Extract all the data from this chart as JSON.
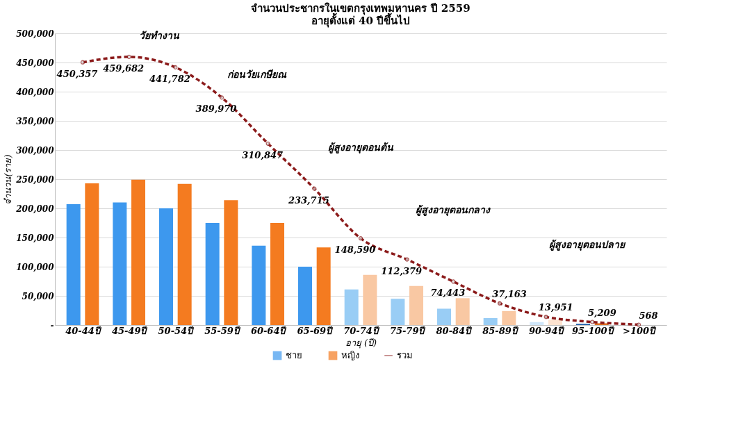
{
  "chart_data": {
    "type": "bar",
    "title": "จำนวนประชากรในเขตกรุงเทพมหานคร ปี 2559",
    "subtitle": "อายุตั้งแต่ 40 ปีขึ้นไป",
    "xlabel": "อายุ (ปี)",
    "ylabel": "จำนวน(ราย)",
    "categories": [
      "40-44ปี",
      "45-49ปี",
      "50-54ปี",
      "55-59ปี",
      "60-64ปี",
      "65-69ปี",
      "70-74ปี",
      "75-79ปี",
      "80-84ปี",
      "85-89ปี",
      "90-94ปี",
      "95-100ปี",
      ">100ปี"
    ],
    "series": [
      {
        "name": "ชาย",
        "color": "#3d98ee",
        "colors": [
          "#3d98ee",
          "#3d98ee",
          "#3d98ee",
          "#3d98ee",
          "#3d98ee",
          "#3d98ee",
          "#99cdf5",
          "#99cdf5",
          "#99cdf5",
          "#99cdf5",
          "#cfe6fa",
          "#1f5fa8",
          "#1f5fa8"
        ],
        "values": [
          207000,
          210000,
          200000,
          175000,
          136000,
          100000,
          61000,
          45000,
          28000,
          12000,
          5000,
          2000,
          0
        ]
      },
      {
        "name": "หญิง",
        "color": "#f47b20",
        "colors": [
          "#f47b20",
          "#f47b20",
          "#f47b20",
          "#f47b20",
          "#f47b20",
          "#f47b20",
          "#f9c8a3",
          "#f9c8a3",
          "#f9c8a3",
          "#f9c8a3",
          "#fde3d0",
          "#e07020",
          "#e07020"
        ],
        "values": [
          243000,
          249000,
          242000,
          214000,
          175000,
          133000,
          86000,
          67000,
          46000,
          24000,
          9000,
          3000,
          0
        ]
      },
      {
        "name": "รวม",
        "type": "line",
        "color": "#8b1a1a",
        "values": [
          450357,
          459682,
          441782,
          389970,
          310847,
          233715,
          148590,
          112379,
          74443,
          37163,
          13951,
          5209,
          568
        ],
        "value_labels": [
          "450,357",
          "459,682",
          "441,782",
          "389,970",
          "310,847",
          "233,715",
          "148,590",
          "112,379",
          "74,443",
          "37,163",
          "13,951",
          "5,209",
          "568"
        ]
      }
    ],
    "ylim": [
      0,
      500000
    ],
    "yticks": [
      {
        "value": 0,
        "label": "-"
      },
      {
        "value": 50000,
        "label": "50,000"
      },
      {
        "value": 100000,
        "label": "100,000"
      },
      {
        "value": 150000,
        "label": "150,000"
      },
      {
        "value": 200000,
        "label": "200,000"
      },
      {
        "value": 250000,
        "label": "250,000"
      },
      {
        "value": 300000,
        "label": "300,000"
      },
      {
        "value": 350000,
        "label": "350,000"
      },
      {
        "value": 400000,
        "label": "400,000"
      },
      {
        "value": 450000,
        "label": "450,000"
      },
      {
        "value": 500000,
        "label": "500,000"
      }
    ],
    "grid": "y",
    "legend": "bottom",
    "marker": "circle",
    "line_style": "dashed",
    "annotations": [
      "วัยทำงาน",
      "ก่อนวัยเกษียณ",
      "ผู้สูงอายุตอนต้น",
      "ผู้สูงอายุตอนกลาง",
      "ผู้สูงอายุตอนปลาย"
    ]
  }
}
